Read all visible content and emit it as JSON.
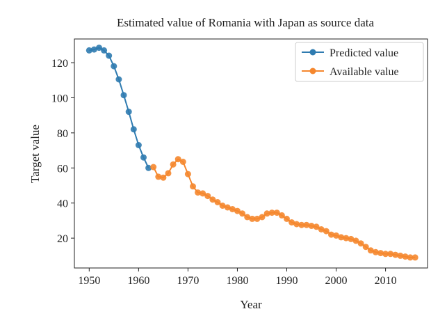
{
  "chart_data": {
    "type": "line",
    "title": "Estimated value of Romania with Japan as source data",
    "xlabel": "Year",
    "ylabel": "Target value",
    "xlim": [
      1947,
      2018.5
    ],
    "ylim": [
      3,
      133.5
    ],
    "xticks": [
      1950,
      1960,
      1970,
      1980,
      1990,
      2000,
      2010
    ],
    "yticks": [
      20,
      40,
      60,
      80,
      100,
      120
    ],
    "grid": false,
    "legend_position": "top-right",
    "series": [
      {
        "name": "Predicted value",
        "color": "#2f7bb0",
        "x": [
          1950,
          1951,
          1952,
          1953,
          1954,
          1955,
          1956,
          1957,
          1958,
          1959,
          1960,
          1961,
          1962
        ],
        "y": [
          127,
          127.5,
          128.5,
          127,
          124,
          118,
          110.5,
          101.5,
          92,
          82,
          73,
          66,
          60
        ]
      },
      {
        "name": "Available value",
        "color": "#f5872e",
        "x": [
          1963,
          1964,
          1965,
          1966,
          1967,
          1968,
          1969,
          1970,
          1971,
          1972,
          1973,
          1974,
          1975,
          1976,
          1977,
          1978,
          1979,
          1980,
          1981,
          1982,
          1983,
          1984,
          1985,
          1986,
          1987,
          1988,
          1989,
          1990,
          1991,
          1992,
          1993,
          1994,
          1995,
          1996,
          1997,
          1998,
          1999,
          2000,
          2001,
          2002,
          2003,
          2004,
          2005,
          2006,
          2007,
          2008,
          2009,
          2010,
          2011,
          2012,
          2013,
          2014,
          2015,
          2016
        ],
        "y": [
          60.5,
          55,
          54.5,
          57,
          62,
          65,
          63.5,
          56.5,
          49.5,
          46,
          45.5,
          44,
          42,
          40.5,
          38.5,
          37.5,
          36.5,
          35.5,
          34,
          32,
          31,
          31,
          32,
          34,
          34.5,
          34.5,
          33,
          31,
          29,
          28,
          27.5,
          27.5,
          27,
          26.5,
          25,
          24,
          22,
          21.5,
          20.5,
          20,
          19.5,
          18.5,
          17,
          15,
          13,
          12,
          11.5,
          11,
          11,
          10.5,
          10,
          9.5,
          9,
          9
        ]
      }
    ]
  }
}
